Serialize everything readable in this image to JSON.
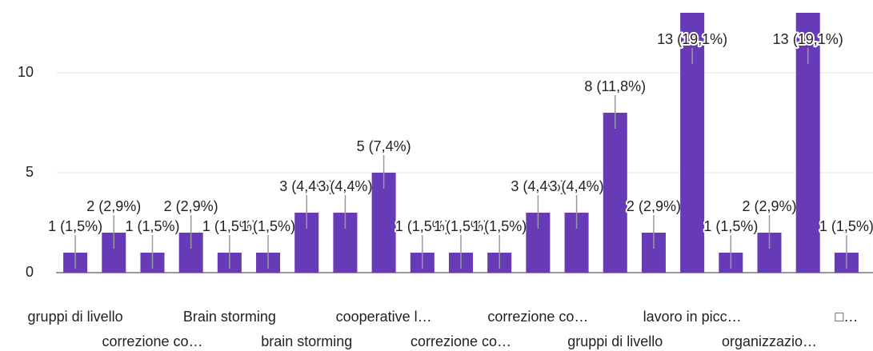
{
  "chart_data": {
    "type": "bar",
    "categories": [
      "gruppi di livello",
      null,
      "correzione co…",
      null,
      "Brain storming",
      null,
      "brain storming",
      null,
      "cooperative l…",
      null,
      "correzione co…",
      null,
      "correzione co…",
      null,
      "gruppi di livello",
      null,
      "lavoro in picc…",
      null,
      "organizzazio…",
      null,
      "□…"
    ],
    "values": [
      1,
      2,
      1,
      2,
      1,
      1,
      3,
      3,
      5,
      1,
      1,
      1,
      3,
      3,
      8,
      2,
      13,
      1,
      2,
      13,
      1
    ],
    "value_labels": [
      "1 (1,5%)",
      "2 (2,9%)",
      "1 (1,5%)",
      "2 (2,9%)",
      "1 (1,5%)",
      "1 (1,5%)",
      "3 (4,4%)",
      "3 (4,4%)",
      "5 (7,4%)",
      "1 (1,5%)",
      "1 (1,5%)",
      "1 (1,5%)",
      "3 (4,4%)",
      "3 (4,4%)",
      "8 (11,8%)",
      "2 (2,9%)",
      "13 (19,1%)",
      "1 (1,5%)",
      "2 (2,9%)",
      "13 (19,1%)",
      "1 (1,5%)"
    ],
    "color": "#673ab7",
    "ylim": [
      0,
      13.2
    ],
    "yticks": [
      0,
      5,
      10
    ],
    "grid": true
  }
}
